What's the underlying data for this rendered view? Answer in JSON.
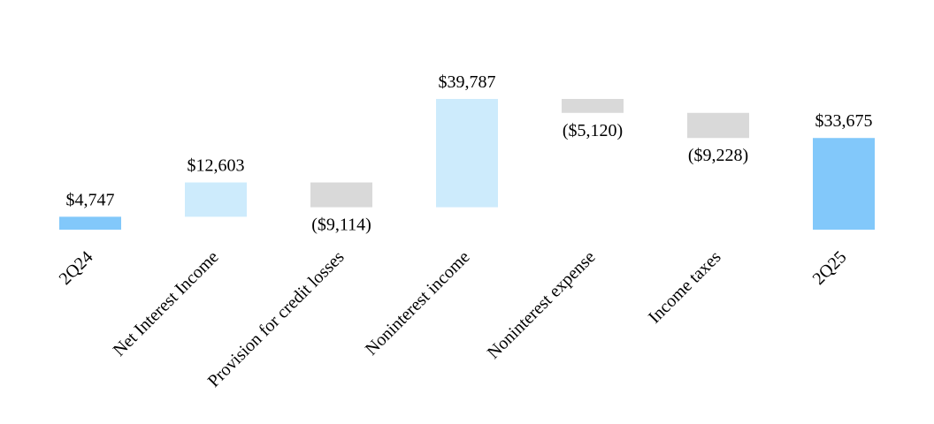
{
  "chart_data": {
    "type": "waterfall",
    "categories": [
      "2Q24",
      "Net Interest Income",
      "Provision for credit losses",
      "Noninterest income",
      "Noninterest expense",
      "Income taxes",
      "2Q25"
    ],
    "values": [
      4747,
      12603,
      -9114,
      39787,
      -5120,
      -9228,
      33675
    ],
    "value_labels": [
      "$4,747",
      "$12,603",
      "($9,114)",
      "$39,787",
      "($5,120)",
      "($9,228)",
      "$33,675"
    ],
    "total_color": "#82c8fa",
    "increase_color": "#cdebfc",
    "decrease_color": "#d9d9d9"
  }
}
